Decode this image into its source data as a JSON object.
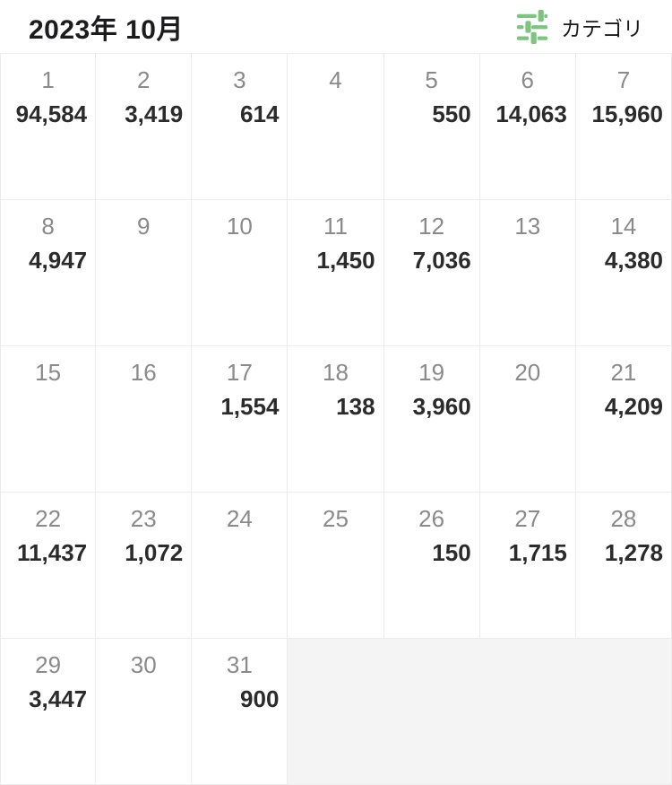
{
  "header": {
    "title": "2023年 10月",
    "category_button": {
      "label": "カテゴリ",
      "icon": "filter-sliders-icon"
    }
  },
  "colors": {
    "accent_green": "#7CC47F",
    "title_text": "#1C1C1E",
    "day_number": "#8A8A8A",
    "amount_text": "#2B2B2B",
    "grid_line": "#ECECEC",
    "filler_bg": "#F4F4F4"
  },
  "calendar": {
    "days": [
      {
        "day": "1",
        "amount": "94,584"
      },
      {
        "day": "2",
        "amount": "3,419"
      },
      {
        "day": "3",
        "amount": "614"
      },
      {
        "day": "4",
        "amount": ""
      },
      {
        "day": "5",
        "amount": "550"
      },
      {
        "day": "6",
        "amount": "14,063"
      },
      {
        "day": "7",
        "amount": "15,960"
      },
      {
        "day": "8",
        "amount": "4,947"
      },
      {
        "day": "9",
        "amount": ""
      },
      {
        "day": "10",
        "amount": ""
      },
      {
        "day": "11",
        "amount": "1,450"
      },
      {
        "day": "12",
        "amount": "7,036"
      },
      {
        "day": "13",
        "amount": ""
      },
      {
        "day": "14",
        "amount": "4,380"
      },
      {
        "day": "15",
        "amount": ""
      },
      {
        "day": "16",
        "amount": ""
      },
      {
        "day": "17",
        "amount": "1,554"
      },
      {
        "day": "18",
        "amount": "138"
      },
      {
        "day": "19",
        "amount": "3,960"
      },
      {
        "day": "20",
        "amount": ""
      },
      {
        "day": "21",
        "amount": "4,209"
      },
      {
        "day": "22",
        "amount": "11,437"
      },
      {
        "day": "23",
        "amount": "1,072"
      },
      {
        "day": "24",
        "amount": ""
      },
      {
        "day": "25",
        "amount": ""
      },
      {
        "day": "26",
        "amount": "150"
      },
      {
        "day": "27",
        "amount": "1,715"
      },
      {
        "day": "28",
        "amount": "1,278"
      },
      {
        "day": "29",
        "amount": "3,447"
      },
      {
        "day": "30",
        "amount": ""
      },
      {
        "day": "31",
        "amount": "900"
      }
    ],
    "trailing_filler_columns": 4
  }
}
